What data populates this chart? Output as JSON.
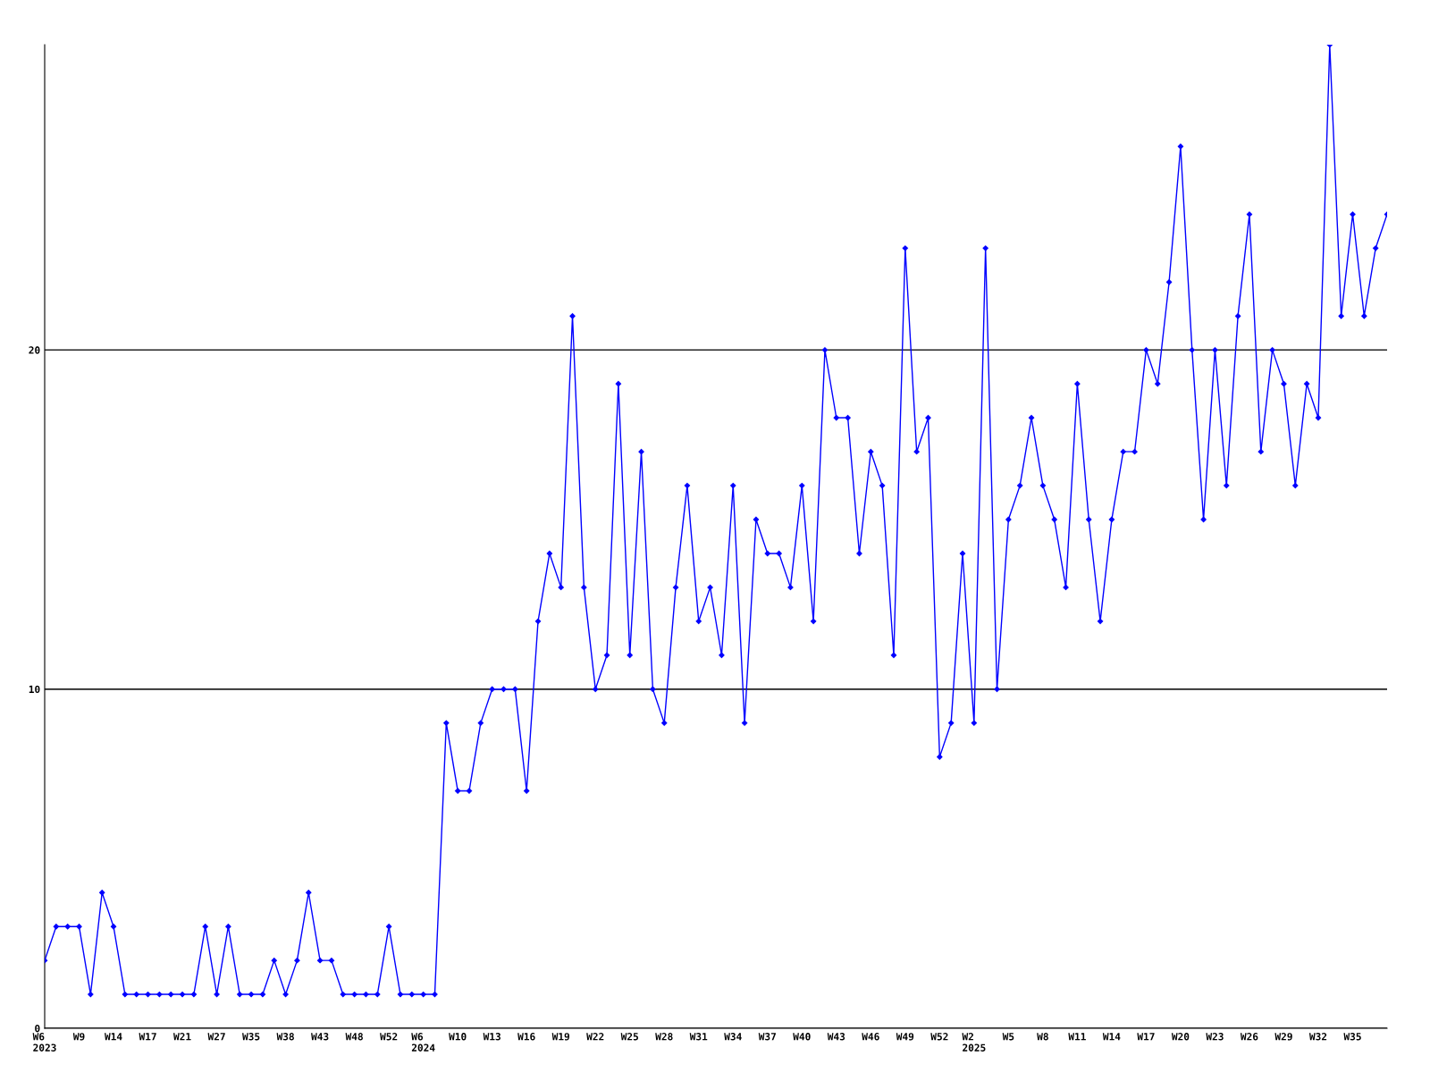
{
  "chart_data": {
    "type": "line",
    "categories": [
      "W6\n2023",
      null,
      null,
      "W9",
      null,
      null,
      "W14",
      null,
      null,
      "W17",
      null,
      null,
      "W21",
      null,
      null,
      "W27",
      null,
      null,
      "W35",
      null,
      null,
      "W38",
      null,
      null,
      "W43",
      null,
      null,
      "W48",
      null,
      null,
      "W52",
      null,
      null,
      "W6\n2024",
      null,
      null,
      "W10",
      null,
      null,
      "W13",
      null,
      null,
      "W16",
      null,
      null,
      "W19",
      null,
      null,
      "W22",
      null,
      null,
      "W25",
      null,
      null,
      "W28",
      null,
      null,
      "W31",
      null,
      null,
      "W34",
      null,
      null,
      "W37",
      null,
      null,
      "W40",
      null,
      null,
      "W43",
      null,
      null,
      "W46",
      null,
      null,
      "W49",
      null,
      null,
      "W52",
      null,
      null,
      "W2\n2025",
      null,
      null,
      "W5",
      null,
      null,
      "W8",
      null,
      null,
      "W11",
      null,
      null,
      "W14",
      null,
      null,
      "W17",
      null,
      null,
      "W20",
      null,
      null,
      "W23",
      null,
      null,
      "W26",
      null,
      null,
      "W29",
      null,
      null,
      "W32",
      null,
      null,
      "W35",
      null,
      null,
      null
    ],
    "series": [
      {
        "color": "#0000ff",
        "values": [
          2,
          3,
          3,
          3,
          1,
          4,
          3,
          1,
          1,
          1,
          1,
          1,
          1,
          1,
          3,
          1,
          3,
          1,
          1,
          1,
          2,
          1,
          2,
          4,
          2,
          2,
          1,
          1,
          1,
          1,
          3,
          1,
          1,
          1,
          1,
          9,
          7,
          7,
          9,
          10,
          10,
          10,
          7,
          12,
          14,
          13,
          21,
          13,
          10,
          11,
          19,
          11,
          17,
          10,
          9,
          13,
          16,
          12,
          13,
          11,
          16,
          9,
          15,
          14,
          14,
          13,
          16,
          12,
          20,
          18,
          18,
          14,
          17,
          16,
          11,
          23,
          17,
          18,
          8,
          9,
          14,
          9,
          23,
          10,
          15,
          16,
          18,
          16,
          15,
          13,
          19,
          15,
          12,
          15,
          17,
          17,
          20,
          19,
          22,
          26,
          20,
          15,
          20,
          16,
          21,
          24,
          17,
          20,
          19,
          16,
          19,
          18,
          29,
          21,
          24,
          21,
          23,
          24
        ]
      }
    ],
    "ylim": [
      0,
      29
    ],
    "yticks": [
      0,
      10,
      20
    ],
    "grid": "y",
    "marker": "diamond",
    "line_style": "solid",
    "legend": false
  }
}
